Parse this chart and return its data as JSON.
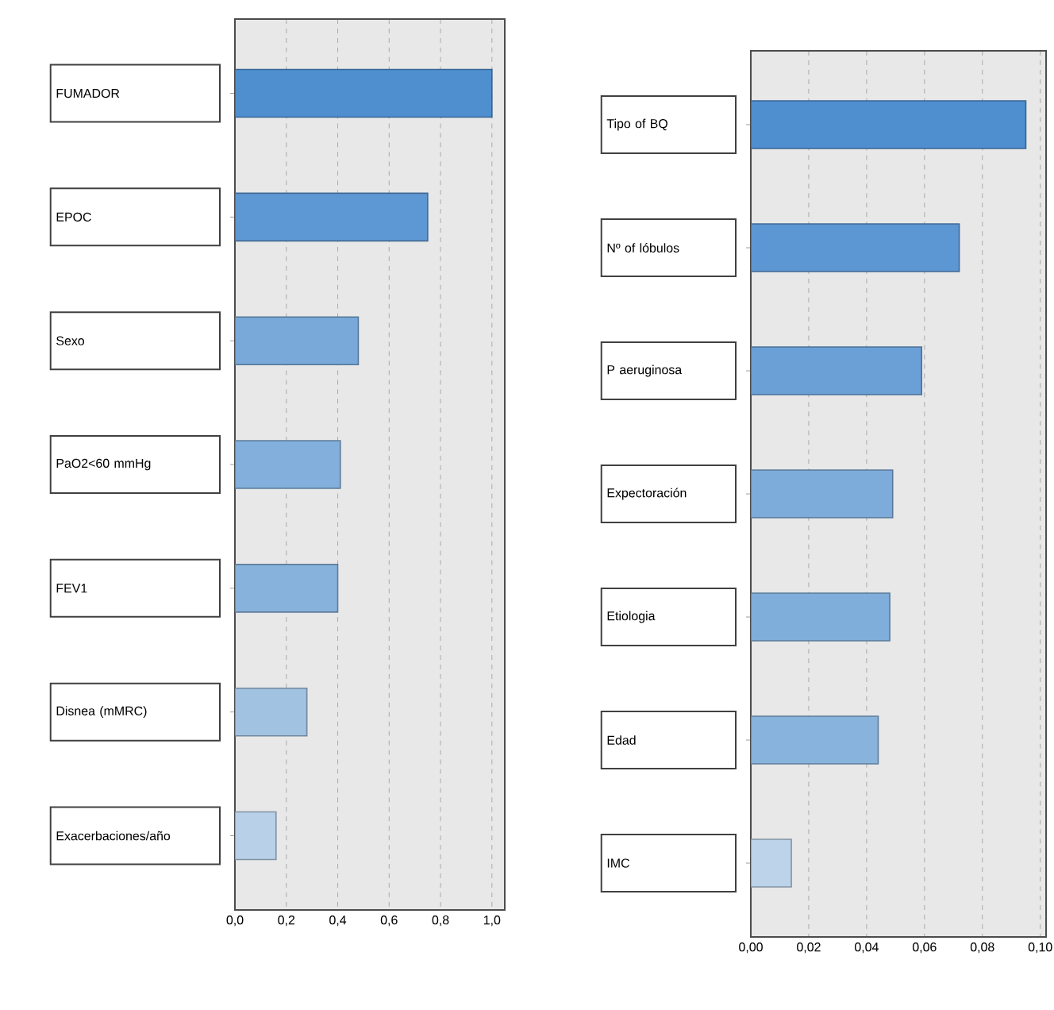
{
  "chart_data": [
    {
      "type": "bar",
      "orientation": "horizontal",
      "categories": [
        "FUMADOR",
        "EPOC",
        "Sexo",
        "PaO2<60 mmHg",
        "FEV1",
        "Disnea (mMRC)",
        "Exacerbaciones/año"
      ],
      "values": [
        1.0,
        0.75,
        0.48,
        0.41,
        0.4,
        0.28,
        0.16
      ],
      "colors": [
        "#4f8fd0",
        "#5e98d4",
        "#78a9d9",
        "#82afdb",
        "#87b2dc",
        "#a2c2e2",
        "#b8d0e8"
      ],
      "xlim": [
        0,
        1.05
      ],
      "xticks": [
        {
          "value": 0,
          "label": "0,0"
        },
        {
          "value": 0.2,
          "label": "0,2"
        },
        {
          "value": 0.4,
          "label": "0,4"
        },
        {
          "value": 0.6,
          "label": "0,6"
        },
        {
          "value": 0.8,
          "label": "0,8"
        },
        {
          "value": 1.0,
          "label": "1,0"
        }
      ],
      "grid": "x"
    },
    {
      "type": "bar",
      "orientation": "horizontal",
      "categories": [
        "Tipo of BQ",
        "Nº of lóbulos",
        "P aeruginosa",
        "Expectoración",
        "Etiologia",
        "Edad",
        "IMC"
      ],
      "values": [
        0.095,
        0.072,
        0.059,
        0.049,
        0.048,
        0.044,
        0.014
      ],
      "colors": [
        "#4f8fd0",
        "#5c97d4",
        "#6aa0d6",
        "#7eacda",
        "#80aedb",
        "#88b3dc",
        "#bcd3ea"
      ],
      "xlim": [
        0,
        0.102
      ],
      "xticks": [
        {
          "value": 0,
          "label": "0,00"
        },
        {
          "value": 0.02,
          "label": "0,02"
        },
        {
          "value": 0.04,
          "label": "0,04"
        },
        {
          "value": 0.06,
          "label": "0,06"
        },
        {
          "value": 0.08,
          "label": "0,08"
        },
        {
          "value": 0.1,
          "label": "0,10"
        }
      ],
      "grid": "x"
    }
  ]
}
